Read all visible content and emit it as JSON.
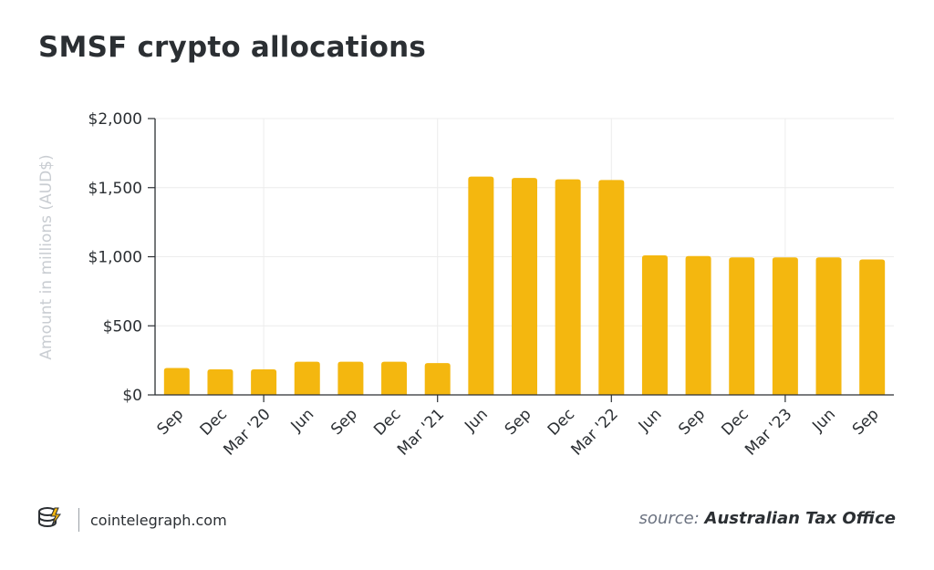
{
  "chart_data": {
    "type": "bar",
    "title": "SMSF crypto allocations",
    "ylabel": "Amount in millions (AUD$)",
    "xlabel": "",
    "ylim": [
      0,
      2000
    ],
    "yticks": [
      "$0",
      "$500",
      "$1,000",
      "$1,500",
      "$2,000"
    ],
    "ytick_values": [
      0,
      500,
      1000,
      1500,
      2000
    ],
    "categories": [
      "Sep",
      "Dec",
      "Mar '20",
      "Jun",
      "Sep",
      "Dec",
      "Mar '21",
      "Jun",
      "Sep",
      "Dec",
      "Mar '22",
      "Jun",
      "Sep",
      "Dec",
      "Mar '23",
      "Jun",
      "Sep"
    ],
    "values": [
      195,
      185,
      185,
      240,
      240,
      240,
      230,
      1580,
      1570,
      1560,
      1555,
      1010,
      1005,
      995,
      995,
      995,
      980
    ],
    "vertical_gridlines_at": [
      "Mar '20",
      "Mar '21",
      "Mar '22",
      "Mar '23"
    ],
    "bar_color": "#f4b70f",
    "grid": true
  },
  "footer": {
    "brand": "cointelegraph.com",
    "source_prefix": "source:",
    "source_name": "Australian Tax Office"
  }
}
